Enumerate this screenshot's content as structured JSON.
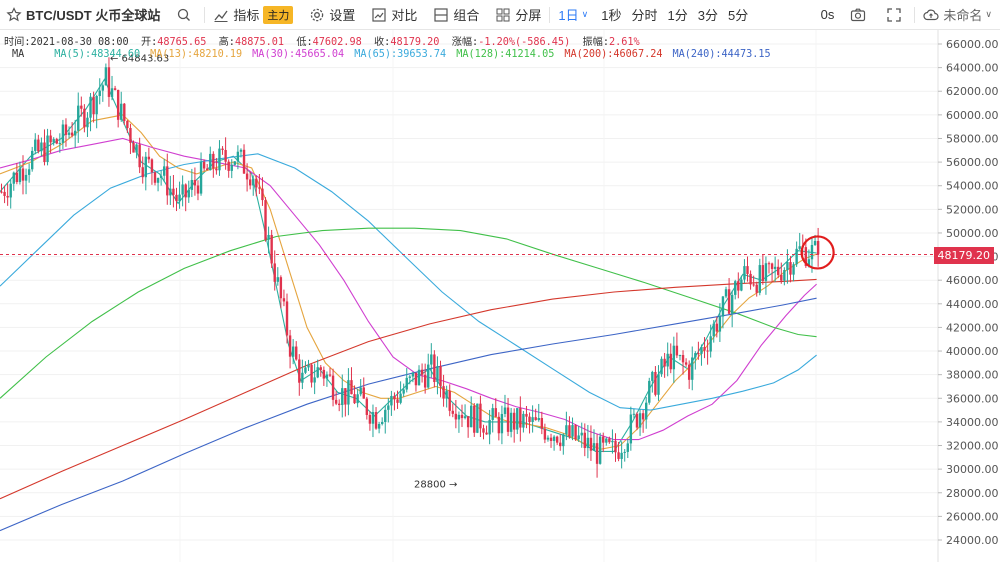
{
  "toolbar": {
    "symbol": "BTC/USDT 火币全球站",
    "indicators_label": "指标",
    "indicator_badge": "主力",
    "settings_label": "设置",
    "compare_label": "对比",
    "combine_label": "组合",
    "split_label": "分屏",
    "intervals": [
      "1日",
      "1秒",
      "分时",
      "1分",
      "3分",
      "5分"
    ],
    "delay_label": "0s",
    "layout_name": "未命名"
  },
  "ohlc": {
    "time_label": "时间:",
    "time": "2021-08-30 08:00",
    "open_label": "开:",
    "open": "48765.65",
    "high_label": "高:",
    "high": "48875.01",
    "low_label": "低:",
    "low": "47602.98",
    "close_label": "收:",
    "close": "48179.20",
    "change_label": "涨幅:",
    "change": "-1.20%(-586.45)",
    "amp_label": "振幅:",
    "amp": "2.61%"
  },
  "ma_legend": {
    "label": "MA",
    "items": [
      {
        "text": "MA(5):48344.60",
        "color": "#2cb0a0"
      },
      {
        "text": "MA(13):48210.19",
        "color": "#e5a53f"
      },
      {
        "text": "MA(30):45665.04",
        "color": "#d03fd0"
      },
      {
        "text": "MA(65):39653.74",
        "color": "#3aaadc"
      },
      {
        "text": "MA(128):41214.05",
        "color": "#41c04a"
      },
      {
        "text": "MA(200):46067.24",
        "color": "#d4382c"
      },
      {
        "text": "MA(240):44473.15",
        "color": "#3d65c6"
      }
    ]
  },
  "chart_data": {
    "type": "candlestick",
    "ylim": [
      23000,
      67000
    ],
    "y_ticks": [
      "24000.00",
      "26000.00",
      "28000.00",
      "30000.00",
      "32000.00",
      "34000.00",
      "36000.00",
      "38000.00",
      "40000.00",
      "42000.00",
      "44000.00",
      "46000.00",
      "48000.00",
      "50000.00",
      "52000.00",
      "54000.00",
      "56000.00",
      "58000.00",
      "60000.00",
      "62000.00",
      "64000.00",
      "66000.00"
    ],
    "current_price_label": "48179.20",
    "current_price": 48179.2,
    "annotations": [
      {
        "text": "64843.63",
        "y": 64843.63,
        "kind": "high"
      },
      {
        "text": "28800",
        "y": 28800,
        "kind": "low"
      }
    ],
    "colors": {
      "up": "#26a69a",
      "down": "#e0334d"
    },
    "series": [
      {
        "name": "MA(5)",
        "color": "#2cb0a0",
        "values": [
          {
            "x": 0,
            "y": 53500
          },
          {
            "x": 10,
            "y": 56500
          },
          {
            "x": 20,
            "y": 58000
          },
          {
            "x": 28,
            "y": 60500
          },
          {
            "x": 34,
            "y": 63000
          },
          {
            "x": 40,
            "y": 59500
          },
          {
            "x": 46,
            "y": 56000
          },
          {
            "x": 52,
            "y": 55000
          },
          {
            "x": 58,
            "y": 52500
          },
          {
            "x": 64,
            "y": 54500
          },
          {
            "x": 70,
            "y": 56000
          },
          {
            "x": 76,
            "y": 56500
          },
          {
            "x": 82,
            "y": 55000
          },
          {
            "x": 86,
            "y": 50500
          },
          {
            "x": 90,
            "y": 45500
          },
          {
            "x": 94,
            "y": 40500
          },
          {
            "x": 98,
            "y": 37500
          },
          {
            "x": 104,
            "y": 38500
          },
          {
            "x": 110,
            "y": 36500
          },
          {
            "x": 116,
            "y": 36000
          },
          {
            "x": 122,
            "y": 34500
          },
          {
            "x": 128,
            "y": 36000
          },
          {
            "x": 134,
            "y": 37500
          },
          {
            "x": 140,
            "y": 38500
          },
          {
            "x": 146,
            "y": 36000
          },
          {
            "x": 152,
            "y": 34500
          },
          {
            "x": 158,
            "y": 34000
          },
          {
            "x": 164,
            "y": 34000
          },
          {
            "x": 170,
            "y": 34000
          },
          {
            "x": 176,
            "y": 33500
          },
          {
            "x": 182,
            "y": 33000
          },
          {
            "x": 188,
            "y": 32500
          },
          {
            "x": 194,
            "y": 31500
          },
          {
            "x": 200,
            "y": 31500
          },
          {
            "x": 206,
            "y": 34000
          },
          {
            "x": 212,
            "y": 37000
          },
          {
            "x": 218,
            "y": 39500
          },
          {
            "x": 224,
            "y": 38500
          },
          {
            "x": 230,
            "y": 41000
          },
          {
            "x": 236,
            "y": 44000
          },
          {
            "x": 242,
            "y": 46500
          },
          {
            "x": 248,
            "y": 46000
          },
          {
            "x": 254,
            "y": 47000
          },
          {
            "x": 260,
            "y": 48500
          },
          {
            "x": 266,
            "y": 48300
          }
        ]
      },
      {
        "name": "MA(13)",
        "color": "#e5a53f",
        "values": [
          {
            "x": 0,
            "y": 55000
          },
          {
            "x": 10,
            "y": 56000
          },
          {
            "x": 20,
            "y": 57500
          },
          {
            "x": 30,
            "y": 59500
          },
          {
            "x": 40,
            "y": 60000
          },
          {
            "x": 46,
            "y": 58500
          },
          {
            "x": 52,
            "y": 56500
          },
          {
            "x": 58,
            "y": 55500
          },
          {
            "x": 64,
            "y": 55000
          },
          {
            "x": 70,
            "y": 55500
          },
          {
            "x": 76,
            "y": 56000
          },
          {
            "x": 82,
            "y": 55500
          },
          {
            "x": 88,
            "y": 52000
          },
          {
            "x": 94,
            "y": 47000
          },
          {
            "x": 100,
            "y": 42000
          },
          {
            "x": 106,
            "y": 39000
          },
          {
            "x": 112,
            "y": 37500
          },
          {
            "x": 118,
            "y": 36500
          },
          {
            "x": 124,
            "y": 36000
          },
          {
            "x": 130,
            "y": 36000
          },
          {
            "x": 136,
            "y": 36500
          },
          {
            "x": 142,
            "y": 37000
          },
          {
            "x": 148,
            "y": 36500
          },
          {
            "x": 154,
            "y": 35500
          },
          {
            "x": 160,
            "y": 34500
          },
          {
            "x": 166,
            "y": 34000
          },
          {
            "x": 172,
            "y": 33800
          },
          {
            "x": 178,
            "y": 33500
          },
          {
            "x": 184,
            "y": 33000
          },
          {
            "x": 190,
            "y": 32200
          },
          {
            "x": 196,
            "y": 31700
          },
          {
            "x": 202,
            "y": 32000
          },
          {
            "x": 208,
            "y": 33500
          },
          {
            "x": 214,
            "y": 35500
          },
          {
            "x": 220,
            "y": 37500
          },
          {
            "x": 226,
            "y": 39000
          },
          {
            "x": 232,
            "y": 41000
          },
          {
            "x": 238,
            "y": 43000
          },
          {
            "x": 244,
            "y": 44500
          },
          {
            "x": 250,
            "y": 45500
          },
          {
            "x": 256,
            "y": 46800
          },
          {
            "x": 262,
            "y": 47800
          },
          {
            "x": 266,
            "y": 48210
          }
        ]
      },
      {
        "name": "MA(30)",
        "color": "#d03fd0",
        "values": [
          {
            "x": 0,
            "y": 55500
          },
          {
            "x": 10,
            "y": 56200
          },
          {
            "x": 20,
            "y": 57000
          },
          {
            "x": 30,
            "y": 57500
          },
          {
            "x": 40,
            "y": 58000
          },
          {
            "x": 50,
            "y": 57200
          },
          {
            "x": 60,
            "y": 56500
          },
          {
            "x": 70,
            "y": 56000
          },
          {
            "x": 80,
            "y": 55500
          },
          {
            "x": 88,
            "y": 54000
          },
          {
            "x": 96,
            "y": 51500
          },
          {
            "x": 104,
            "y": 49000
          },
          {
            "x": 112,
            "y": 46000
          },
          {
            "x": 120,
            "y": 42500
          },
          {
            "x": 128,
            "y": 39500
          },
          {
            "x": 136,
            "y": 38000
          },
          {
            "x": 144,
            "y": 37500
          },
          {
            "x": 152,
            "y": 36800
          },
          {
            "x": 160,
            "y": 36000
          },
          {
            "x": 168,
            "y": 35300
          },
          {
            "x": 176,
            "y": 34800
          },
          {
            "x": 184,
            "y": 34200
          },
          {
            "x": 192,
            "y": 33200
          },
          {
            "x": 200,
            "y": 32500
          },
          {
            "x": 208,
            "y": 32500
          },
          {
            "x": 216,
            "y": 33300
          },
          {
            "x": 224,
            "y": 34500
          },
          {
            "x": 232,
            "y": 35500
          },
          {
            "x": 240,
            "y": 37500
          },
          {
            "x": 248,
            "y": 40500
          },
          {
            "x": 256,
            "y": 43000
          },
          {
            "x": 262,
            "y": 44700
          },
          {
            "x": 266,
            "y": 45665
          }
        ]
      },
      {
        "name": "MA(65)",
        "color": "#3aaadc",
        "values": [
          {
            "x": 0,
            "y": 45500
          },
          {
            "x": 12,
            "y": 48500
          },
          {
            "x": 24,
            "y": 51500
          },
          {
            "x": 36,
            "y": 53800
          },
          {
            "x": 48,
            "y": 55000
          },
          {
            "x": 60,
            "y": 55800
          },
          {
            "x": 72,
            "y": 56300
          },
          {
            "x": 84,
            "y": 56700
          },
          {
            "x": 96,
            "y": 55500
          },
          {
            "x": 108,
            "y": 53500
          },
          {
            "x": 120,
            "y": 51000
          },
          {
            "x": 132,
            "y": 48000
          },
          {
            "x": 144,
            "y": 45000
          },
          {
            "x": 156,
            "y": 42500
          },
          {
            "x": 168,
            "y": 40500
          },
          {
            "x": 180,
            "y": 38500
          },
          {
            "x": 192,
            "y": 36500
          },
          {
            "x": 202,
            "y": 35200
          },
          {
            "x": 212,
            "y": 35000
          },
          {
            "x": 222,
            "y": 35500
          },
          {
            "x": 232,
            "y": 36000
          },
          {
            "x": 242,
            "y": 36600
          },
          {
            "x": 252,
            "y": 37300
          },
          {
            "x": 260,
            "y": 38400
          },
          {
            "x": 266,
            "y": 39654
          }
        ]
      },
      {
        "name": "MA(128)",
        "color": "#41c04a",
        "values": [
          {
            "x": 0,
            "y": 36000
          },
          {
            "x": 15,
            "y": 39500
          },
          {
            "x": 30,
            "y": 42500
          },
          {
            "x": 45,
            "y": 45000
          },
          {
            "x": 60,
            "y": 47000
          },
          {
            "x": 75,
            "y": 48500
          },
          {
            "x": 90,
            "y": 49700
          },
          {
            "x": 105,
            "y": 50200
          },
          {
            "x": 120,
            "y": 50400
          },
          {
            "x": 135,
            "y": 50400
          },
          {
            "x": 150,
            "y": 50200
          },
          {
            "x": 165,
            "y": 49500
          },
          {
            "x": 180,
            "y": 48200
          },
          {
            "x": 195,
            "y": 47000
          },
          {
            "x": 210,
            "y": 45800
          },
          {
            "x": 225,
            "y": 44500
          },
          {
            "x": 240,
            "y": 43200
          },
          {
            "x": 252,
            "y": 42000
          },
          {
            "x": 260,
            "y": 41400
          },
          {
            "x": 266,
            "y": 41214
          }
        ]
      },
      {
        "name": "MA(200)",
        "color": "#d4382c",
        "values": [
          {
            "x": 0,
            "y": 27500
          },
          {
            "x": 20,
            "y": 29800
          },
          {
            "x": 40,
            "y": 32000
          },
          {
            "x": 60,
            "y": 34200
          },
          {
            "x": 80,
            "y": 36500
          },
          {
            "x": 100,
            "y": 38800
          },
          {
            "x": 120,
            "y": 40800
          },
          {
            "x": 140,
            "y": 42300
          },
          {
            "x": 160,
            "y": 43500
          },
          {
            "x": 180,
            "y": 44400
          },
          {
            "x": 200,
            "y": 45000
          },
          {
            "x": 220,
            "y": 45400
          },
          {
            "x": 240,
            "y": 45700
          },
          {
            "x": 255,
            "y": 45900
          },
          {
            "x": 266,
            "y": 46067
          }
        ]
      },
      {
        "name": "MA(240)",
        "color": "#3d65c6",
        "values": [
          {
            "x": 0,
            "y": 24800
          },
          {
            "x": 20,
            "y": 27000
          },
          {
            "x": 40,
            "y": 29000
          },
          {
            "x": 60,
            "y": 31300
          },
          {
            "x": 80,
            "y": 33500
          },
          {
            "x": 100,
            "y": 35500
          },
          {
            "x": 120,
            "y": 37200
          },
          {
            "x": 140,
            "y": 38500
          },
          {
            "x": 160,
            "y": 39700
          },
          {
            "x": 180,
            "y": 40600
          },
          {
            "x": 200,
            "y": 41400
          },
          {
            "x": 220,
            "y": 42300
          },
          {
            "x": 240,
            "y": 43200
          },
          {
            "x": 255,
            "y": 43900
          },
          {
            "x": 266,
            "y": 44473
          }
        ]
      }
    ]
  }
}
